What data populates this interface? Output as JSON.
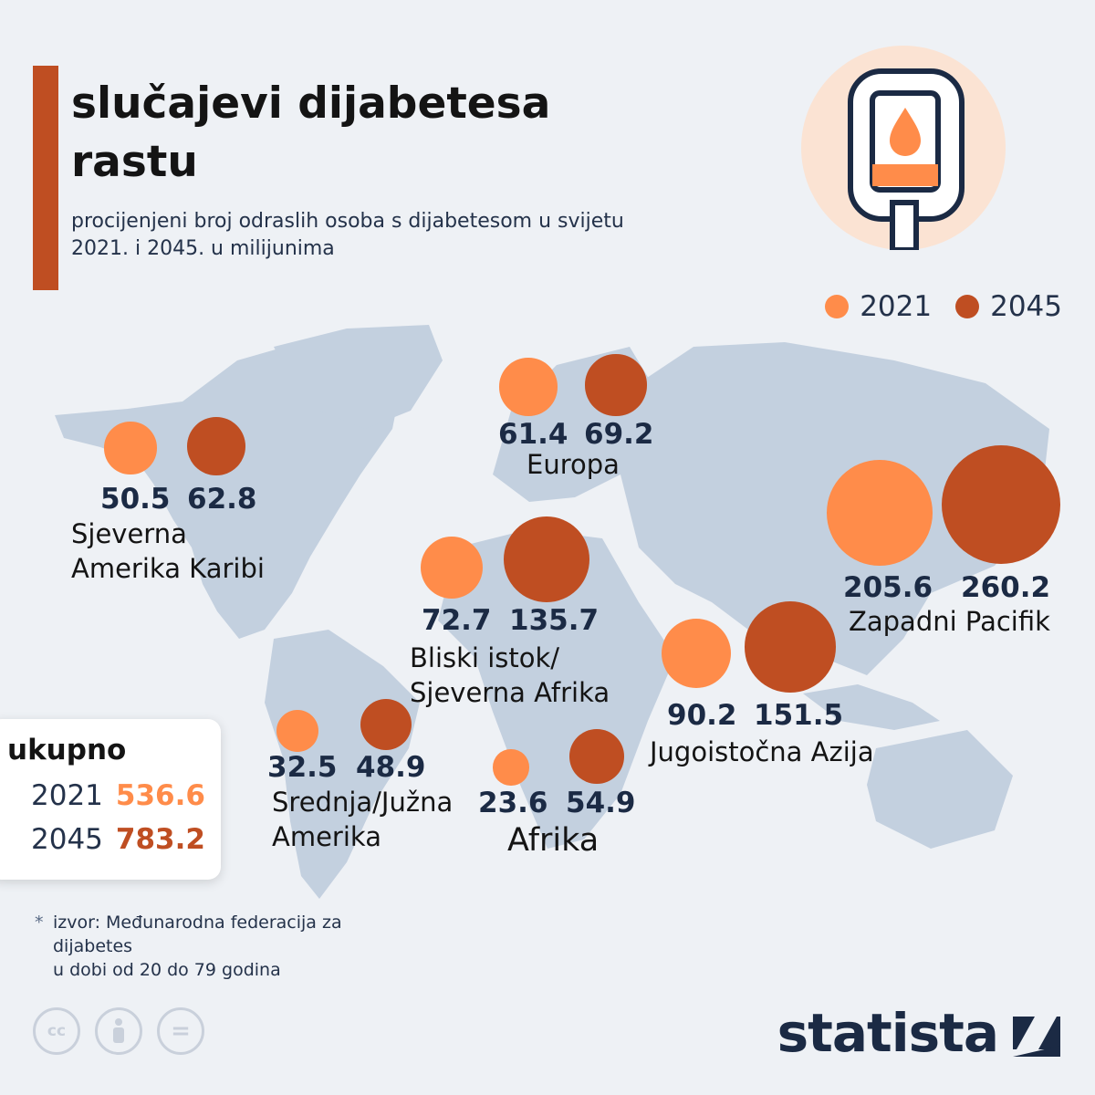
{
  "header": {
    "title": "slučajevi dijabetesa rastu",
    "subtitle": "procijenjeni broj odraslih osoba s dijabetesom u svijetu 2021. i 2045. u milijunima"
  },
  "legend": {
    "items": [
      "2021",
      "2045"
    ]
  },
  "colors": {
    "accent": "#bf4e22",
    "c2021": "#ff8c4a",
    "c2045": "#bf4e22",
    "map": "#c3d0df",
    "text": "#1b2a44"
  },
  "chart_data": {
    "type": "bubble-map",
    "series": [
      {
        "name": "2021",
        "values": [
          50.5,
          61.4,
          72.7,
          205.6,
          90.2,
          32.5,
          23.6
        ]
      },
      {
        "name": "2045",
        "values": [
          62.8,
          69.2,
          135.7,
          260.2,
          151.5,
          48.9,
          54.9
        ]
      }
    ],
    "categories": [
      "Sjeverna Amerika Karibi",
      "Europa",
      "Bliski istok/ Sjeverna Afrika",
      "Zapadni Pacifik",
      "Jugoistočna Azija",
      "Srednja/Južna Amerika",
      "Afrika"
    ],
    "regions": [
      {
        "key": "nam",
        "label_lines": [
          "Sjeverna",
          "Amerika Karibi"
        ],
        "v2021": 50.5,
        "v2045": 62.8
      },
      {
        "key": "eur",
        "label_lines": [
          "Europa"
        ],
        "v2021": 61.4,
        "v2045": 69.2
      },
      {
        "key": "mena",
        "label_lines": [
          "Bliski istok/",
          "Sjeverna Afrika"
        ],
        "v2021": 72.7,
        "v2045": 135.7
      },
      {
        "key": "wp",
        "label_lines": [
          "Zapadni Pacifik"
        ],
        "v2021": 205.6,
        "v2045": 260.2
      },
      {
        "key": "sea",
        "label_lines": [
          "Jugoistočna Azija"
        ],
        "v2021": 90.2,
        "v2045": 151.5
      },
      {
        "key": "sam",
        "label_lines": [
          "Srednja/Južna",
          "Amerika"
        ],
        "v2021": 32.5,
        "v2045": 48.9
      },
      {
        "key": "afr",
        "label_lines": [
          "Afrika"
        ],
        "v2021": 23.6,
        "v2045": 54.9
      }
    ]
  },
  "total": {
    "title": "ukupno",
    "rows": [
      {
        "year": "2021",
        "value": "536.6"
      },
      {
        "year": "2045",
        "value": "783.2"
      }
    ]
  },
  "source": {
    "marker": "*",
    "lines": [
      "izvor: Međunarodna federacija za",
      "dijabetes",
      "u dobi od 20 do 79 godina"
    ]
  },
  "footer": {
    "brand": "statista",
    "license_icons": [
      "cc-icon",
      "attribution-icon",
      "no-derivatives-icon"
    ],
    "license_glyphs": [
      "cc",
      "",
      "="
    ]
  }
}
